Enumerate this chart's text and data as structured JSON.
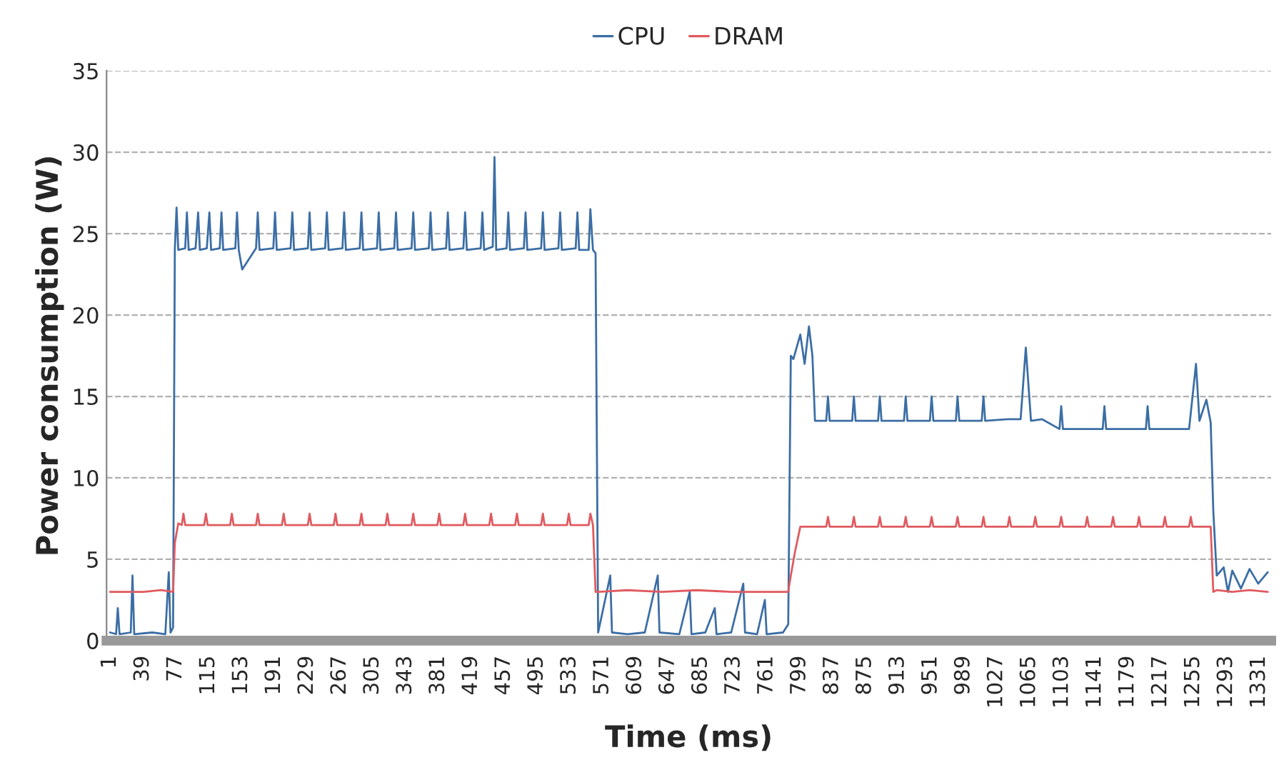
{
  "chart_data": {
    "type": "line",
    "xlabel": "Time (ms)",
    "ylabel": "Power consumption (W)",
    "legend": "top",
    "grid": "y",
    "line_style": "solid",
    "marker": "none",
    "xlim": [
      -3,
      1345
    ],
    "ylim": [
      0,
      35
    ],
    "yticks": [
      0,
      5,
      10,
      15,
      20,
      25,
      30,
      35
    ],
    "xticks": [
      1,
      39,
      77,
      115,
      153,
      191,
      229,
      267,
      305,
      343,
      381,
      419,
      457,
      495,
      533,
      571,
      609,
      647,
      685,
      723,
      761,
      799,
      837,
      875,
      913,
      951,
      989,
      1027,
      1065,
      1103,
      1141,
      1179,
      1217,
      1255,
      1293,
      1331
    ],
    "series": [
      {
        "name": "CPU",
        "color": "#3c6ea5",
        "x": [
          1,
          8,
          10,
          12,
          25,
          27,
          29,
          50,
          65,
          69,
          71,
          74,
          76,
          78,
          80,
          88,
          90,
          92,
          100,
          103,
          105,
          113,
          116,
          118,
          128,
          130,
          132,
          146,
          148,
          150,
          154,
          170,
          172,
          174,
          190,
          192,
          194,
          210,
          212,
          214,
          230,
          232,
          234,
          250,
          252,
          254,
          270,
          272,
          274,
          290,
          292,
          294,
          310,
          312,
          314,
          330,
          332,
          334,
          350,
          352,
          354,
          370,
          372,
          374,
          390,
          392,
          394,
          410,
          412,
          414,
          430,
          432,
          434,
          444,
          446,
          448,
          460,
          462,
          464,
          480,
          482,
          484,
          500,
          502,
          504,
          520,
          522,
          524,
          540,
          542,
          544,
          555,
          557,
          560,
          563,
          566,
          580,
          582,
          600,
          620,
          635,
          637,
          660,
          672,
          674,
          690,
          701,
          703,
          720,
          734,
          736,
          750,
          759,
          761,
          780,
          786,
          789,
          792,
          800,
          805,
          810,
          814,
          817,
          830,
          832,
          834,
          860,
          862,
          864,
          890,
          892,
          894,
          920,
          922,
          924,
          950,
          952,
          954,
          980,
          982,
          984,
          1010,
          1012,
          1014,
          1040,
          1055,
          1061,
          1067,
          1080,
          1100,
          1102,
          1104,
          1130,
          1150,
          1152,
          1154,
          1180,
          1200,
          1202,
          1204,
          1230,
          1250,
          1258,
          1262,
          1270,
          1275,
          1278,
          1282,
          1290,
          1295,
          1300,
          1310,
          1320,
          1330,
          1341
        ],
        "values": [
          0.5,
          0.4,
          2.0,
          0.4,
          0.5,
          4.0,
          0.4,
          0.5,
          0.4,
          4.2,
          0.5,
          0.8,
          24.0,
          26.6,
          24.0,
          24.1,
          26.3,
          24.0,
          24.1,
          26.3,
          24.0,
          24.1,
          26.3,
          24.0,
          24.1,
          26.3,
          24.0,
          24.1,
          26.3,
          24.0,
          22.8,
          24.1,
          26.3,
          24.0,
          24.1,
          26.3,
          24.0,
          24.1,
          26.3,
          24.0,
          24.1,
          26.3,
          24.0,
          24.1,
          26.3,
          24.0,
          24.1,
          26.3,
          24.0,
          24.1,
          26.3,
          24.0,
          24.1,
          26.3,
          24.0,
          24.1,
          26.3,
          24.0,
          24.1,
          26.3,
          24.0,
          24.1,
          26.3,
          24.0,
          24.1,
          26.3,
          24.0,
          24.1,
          26.3,
          24.0,
          24.1,
          26.3,
          24.0,
          24.2,
          29.7,
          24.0,
          24.1,
          26.3,
          24.0,
          24.1,
          26.3,
          24.0,
          24.1,
          26.3,
          24.0,
          24.1,
          26.3,
          24.0,
          24.1,
          26.3,
          24.0,
          24.0,
          26.5,
          24.0,
          23.8,
          0.5,
          4.0,
          0.5,
          0.4,
          0.5,
          4.0,
          0.5,
          0.4,
          3.0,
          0.4,
          0.5,
          2.0,
          0.4,
          0.5,
          3.5,
          0.5,
          0.4,
          2.5,
          0.4,
          0.5,
          1.0,
          17.5,
          17.3,
          18.8,
          17.0,
          19.3,
          17.5,
          13.5,
          13.5,
          15.0,
          13.5,
          13.5,
          15.0,
          13.5,
          13.5,
          15.0,
          13.5,
          13.5,
          15.0,
          13.5,
          13.5,
          15.0,
          13.5,
          13.5,
          15.0,
          13.5,
          13.5,
          15.0,
          13.5,
          13.6,
          13.6,
          18.0,
          13.5,
          13.6,
          13.0,
          14.4,
          13.0,
          13.0,
          13.0,
          14.4,
          13.0,
          13.0,
          13.0,
          14.4,
          13.0,
          13.0,
          13.0,
          17.0,
          13.5,
          14.8,
          13.4,
          8.0,
          4.0,
          4.5,
          3.0,
          4.3,
          3.2,
          4.4,
          3.5,
          4.2
        ]
      },
      {
        "name": "DRAM",
        "color": "#e05a5f",
        "x": [
          1,
          20,
          40,
          60,
          74,
          76,
          80,
          84,
          86,
          88,
          110,
          112,
          114,
          140,
          142,
          144,
          170,
          172,
          174,
          200,
          202,
          204,
          230,
          232,
          234,
          260,
          262,
          264,
          290,
          292,
          294,
          320,
          322,
          324,
          350,
          352,
          354,
          380,
          382,
          384,
          410,
          412,
          414,
          440,
          442,
          444,
          470,
          472,
          474,
          500,
          502,
          504,
          530,
          532,
          534,
          555,
          557,
          560,
          563,
          566,
          600,
          640,
          680,
          720,
          760,
          786,
          789,
          794,
          800,
          805,
          820,
          830,
          832,
          834,
          860,
          862,
          864,
          890,
          892,
          894,
          920,
          922,
          924,
          950,
          952,
          954,
          980,
          982,
          984,
          1010,
          1012,
          1014,
          1040,
          1042,
          1044,
          1070,
          1072,
          1074,
          1100,
          1102,
          1104,
          1130,
          1132,
          1134,
          1160,
          1162,
          1164,
          1190,
          1192,
          1194,
          1220,
          1222,
          1224,
          1250,
          1252,
          1254,
          1272,
          1275,
          1278,
          1282,
          1300,
          1320,
          1341
        ],
        "values": [
          3.0,
          3.0,
          3.0,
          3.1,
          3.0,
          6.0,
          7.2,
          7.1,
          7.8,
          7.1,
          7.1,
          7.8,
          7.1,
          7.1,
          7.8,
          7.1,
          7.1,
          7.8,
          7.1,
          7.1,
          7.8,
          7.1,
          7.1,
          7.8,
          7.1,
          7.1,
          7.8,
          7.1,
          7.1,
          7.8,
          7.1,
          7.1,
          7.8,
          7.1,
          7.1,
          7.8,
          7.1,
          7.1,
          7.8,
          7.1,
          7.1,
          7.8,
          7.1,
          7.1,
          7.8,
          7.1,
          7.1,
          7.8,
          7.1,
          7.1,
          7.8,
          7.1,
          7.1,
          7.8,
          7.1,
          7.1,
          7.8,
          7.1,
          3.0,
          3.0,
          3.1,
          3.0,
          3.1,
          3.0,
          3.0,
          3.0,
          4.0,
          5.5,
          7.0,
          7.0,
          7.0,
          7.0,
          7.6,
          7.0,
          7.0,
          7.6,
          7.0,
          7.0,
          7.6,
          7.0,
          7.0,
          7.6,
          7.0,
          7.0,
          7.6,
          7.0,
          7.0,
          7.6,
          7.0,
          7.0,
          7.6,
          7.0,
          7.0,
          7.6,
          7.0,
          7.0,
          7.6,
          7.0,
          7.0,
          7.6,
          7.0,
          7.0,
          7.6,
          7.0,
          7.0,
          7.6,
          7.0,
          7.0,
          7.6,
          7.0,
          7.0,
          7.6,
          7.0,
          7.0,
          7.6,
          7.0,
          7.0,
          7.0,
          3.0,
          3.1,
          3.0,
          3.1,
          3.0
        ]
      }
    ]
  }
}
